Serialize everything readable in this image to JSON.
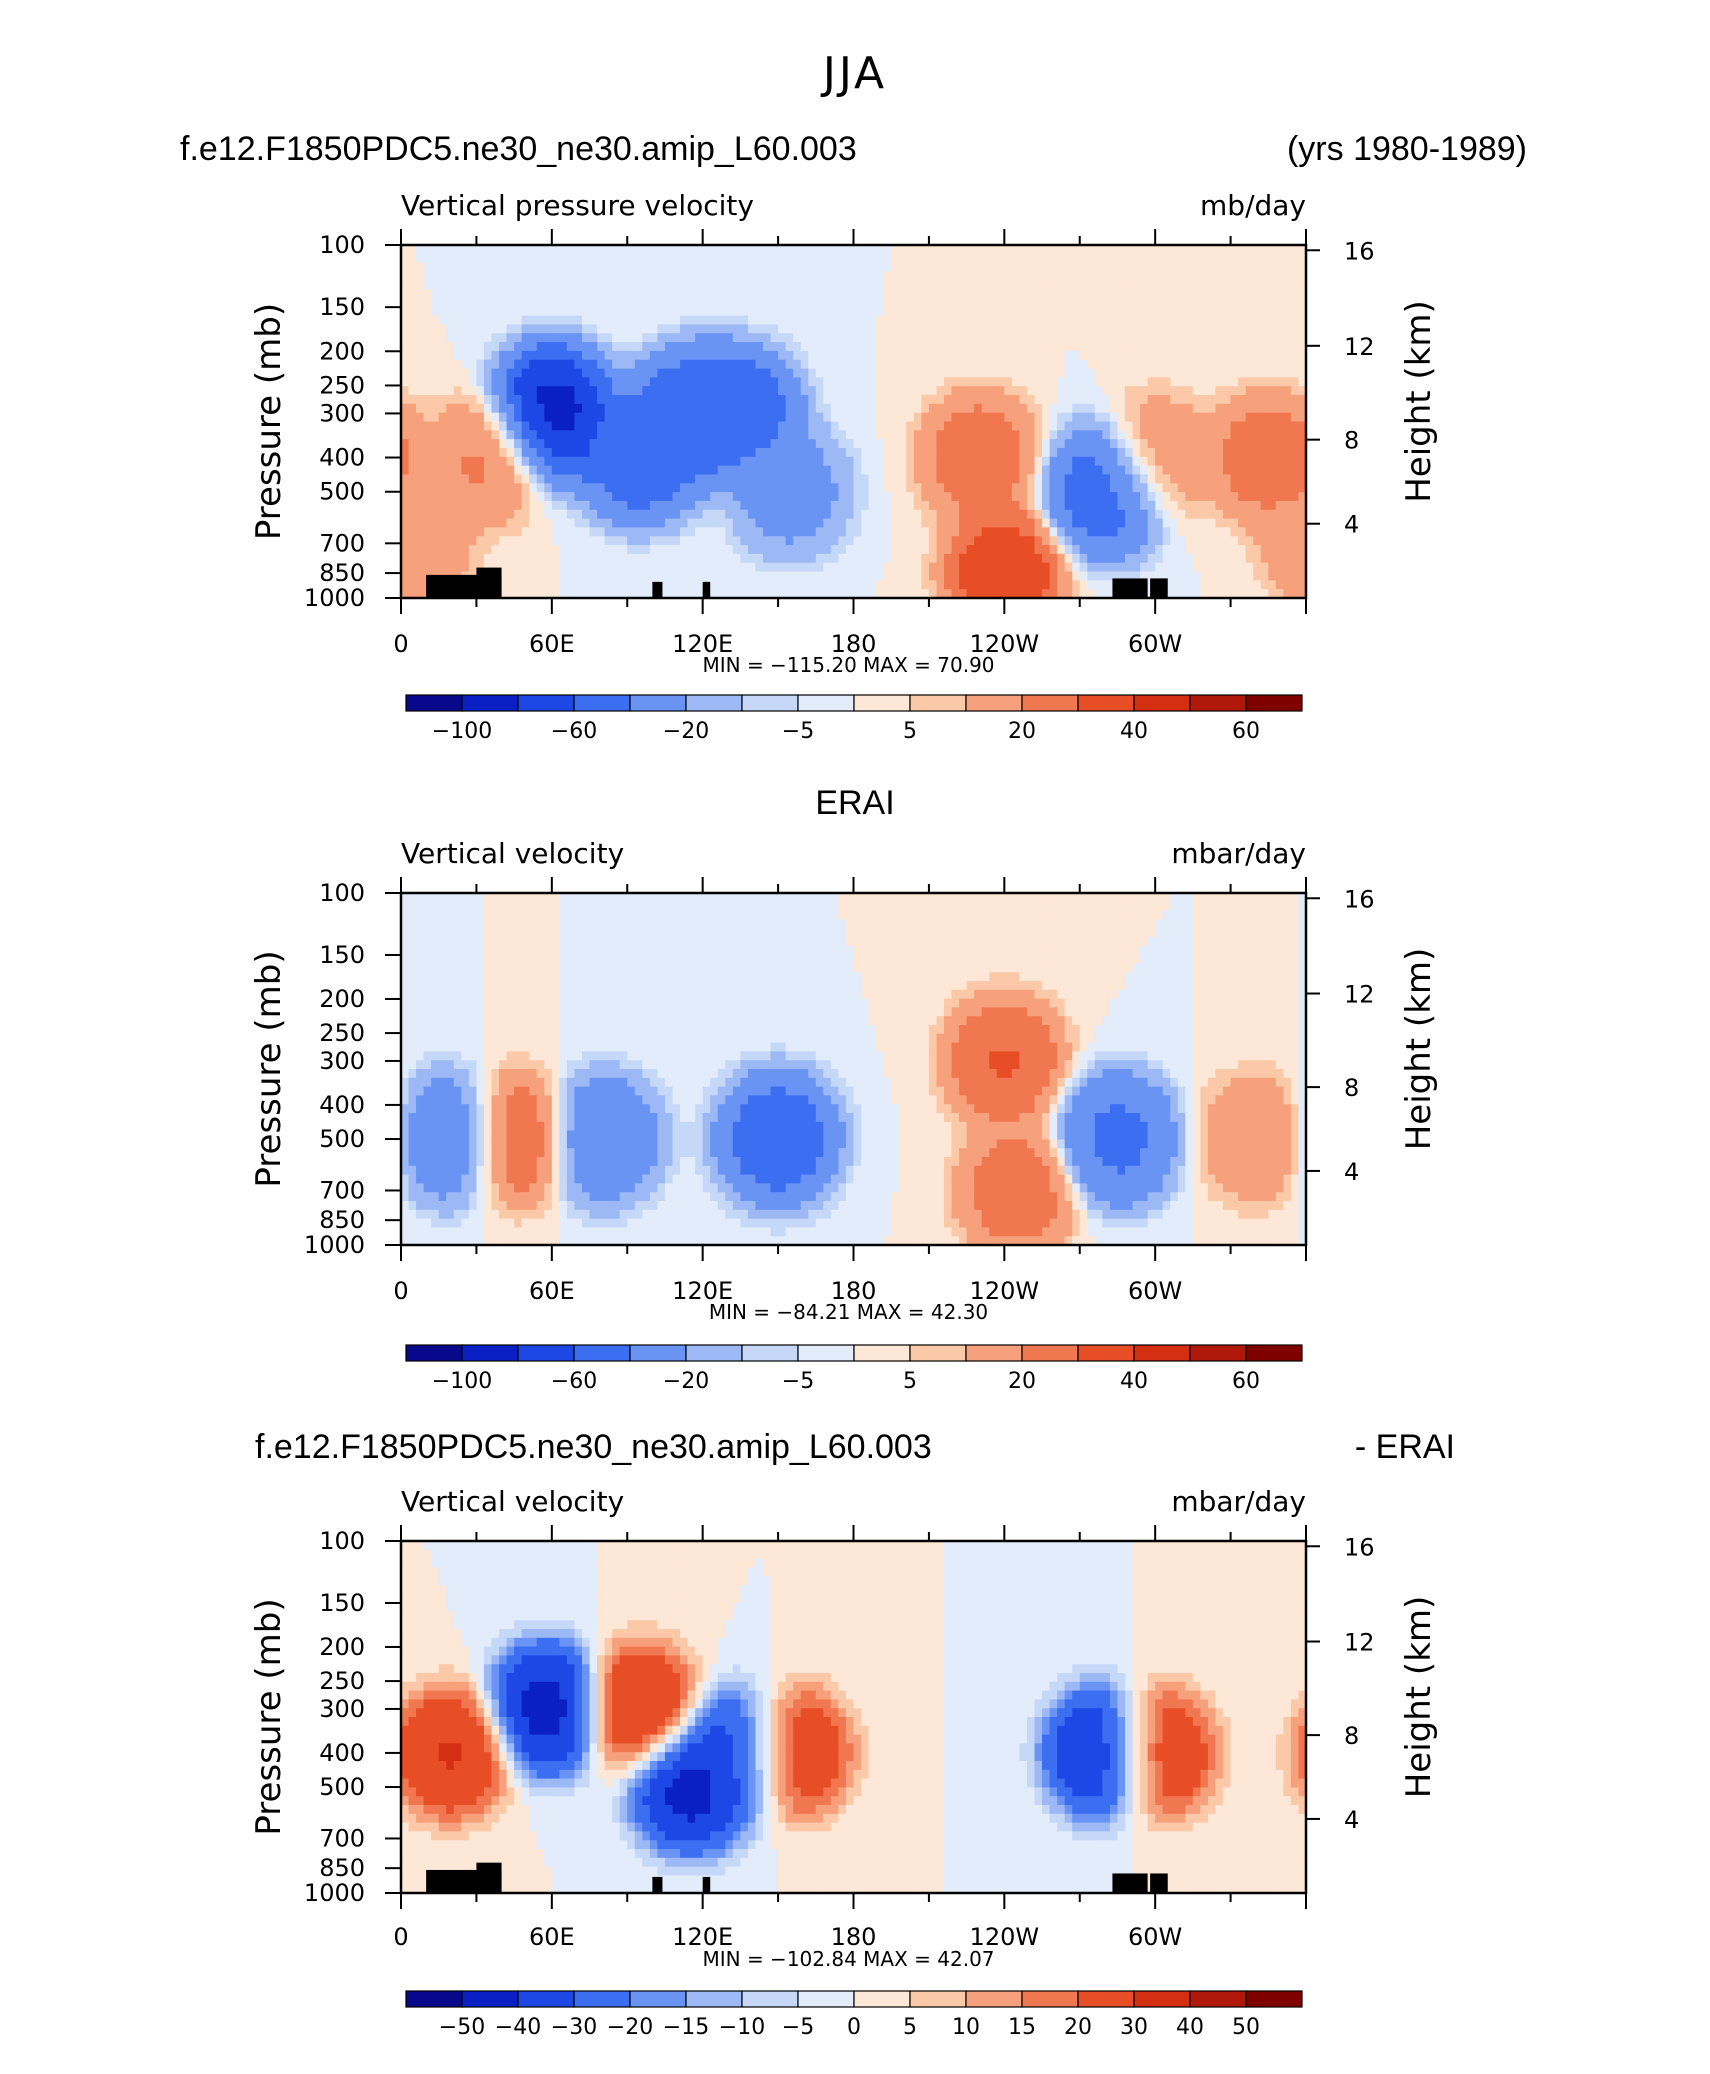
{
  "main_title": "JJA",
  "panel1_header": {
    "left": "f.e12.F1850PDC5.ne30_ne30.amip_L60.003",
    "right": "(yrs 1980-1989)"
  },
  "panel2_header": {
    "center": "ERAI"
  },
  "panel3_header": {
    "left": "f.e12.F1850PDC5.ne30_ne30.amip_L60.003",
    "right": "- ERAI"
  },
  "colors": {
    "levels_main": [
      "#08088c",
      "#0b20c4",
      "#1e48e6",
      "#3c6ef2",
      "#6a94f4",
      "#9cb8f5",
      "#c6d8f7",
      "#e2ecfb",
      "#fde7d6",
      "#fbc9a8",
      "#f6a17c",
      "#f07750",
      "#e84e26",
      "#d42f10",
      "#b0180a",
      "#800000"
    ],
    "levels_diff": [
      "#08088c",
      "#0b20c4",
      "#1e48e6",
      "#3c6ef2",
      "#6a94f4",
      "#9cb8f5",
      "#c6d8f7",
      "#e2ecfb",
      "#fde7d6",
      "#fbc9a8",
      "#f6a17c",
      "#f07750",
      "#e84e26",
      "#d42f10",
      "#b0180a",
      "#800000"
    ]
  },
  "chart_data": [
    {
      "type": "heatmap",
      "title": "Vertical pressure velocity",
      "units": "mb/day",
      "ylabel_left": "Pressure (mb)",
      "ylabel_right": "Height (km)",
      "x_ticks": [
        "0",
        "60E",
        "120E",
        "180",
        "120W",
        "60W"
      ],
      "y_ticks_pressure": [
        "100",
        "150",
        "200",
        "250",
        "300",
        "400",
        "500",
        "700",
        "850",
        "1000"
      ],
      "y_ticks_height": [
        "16",
        "12",
        "8",
        "4"
      ],
      "stats": "MIN = −115.20   MAX =   70.90",
      "colorbar_labels": [
        "−100",
        "−60",
        "−20",
        "−5",
        "5",
        "20",
        "40",
        "60"
      ],
      "min": -115.2,
      "max": 70.9,
      "cells": [
        {
          "lon": 5,
          "lev": 700,
          "v": 20
        },
        {
          "lon": 35,
          "lev": 400,
          "v": 25
        },
        {
          "lon": 60,
          "lev": 300,
          "v": -100
        },
        {
          "lon": 95,
          "lev": 400,
          "v": -60
        },
        {
          "lon": 115,
          "lev": 300,
          "v": -60
        },
        {
          "lon": 135,
          "lev": 300,
          "v": -60
        },
        {
          "lon": 155,
          "lev": 500,
          "v": -30
        },
        {
          "lon": 230,
          "lev": 400,
          "v": 30
        },
        {
          "lon": 240,
          "lev": 850,
          "v": 45
        },
        {
          "lon": 280,
          "lev": 500,
          "v": -60
        },
        {
          "lon": 300,
          "lev": 400,
          "v": 20
        },
        {
          "lon": 345,
          "lev": 400,
          "v": 30
        }
      ]
    },
    {
      "type": "heatmap",
      "title": "Vertical velocity",
      "units": "mbar/day",
      "ylabel_left": "Pressure (mb)",
      "ylabel_right": "Height (km)",
      "x_ticks": [
        "0",
        "60E",
        "120E",
        "180",
        "120W",
        "60W"
      ],
      "y_ticks_pressure": [
        "100",
        "150",
        "200",
        "250",
        "300",
        "400",
        "500",
        "700",
        "850",
        "1000"
      ],
      "y_ticks_height": [
        "16",
        "12",
        "8",
        "4"
      ],
      "stats": "MIN = −84.21   MAX =   42.30",
      "colorbar_labels": [
        "−100",
        "−60",
        "−20",
        "−5",
        "5",
        "20",
        "40",
        "60"
      ],
      "min": -84.21,
      "max": 42.3,
      "cells": [
        {
          "lon": 20,
          "lev": 500,
          "v": -40
        },
        {
          "lon": 45,
          "lev": 500,
          "v": 35
        },
        {
          "lon": 80,
          "lev": 500,
          "v": -40
        },
        {
          "lon": 150,
          "lev": 500,
          "v": -60
        },
        {
          "lon": 240,
          "lev": 300,
          "v": 35
        },
        {
          "lon": 245,
          "lev": 700,
          "v": 30
        },
        {
          "lon": 285,
          "lev": 500,
          "v": -50
        },
        {
          "lon": 340,
          "lev": 500,
          "v": 20
        }
      ]
    },
    {
      "type": "heatmap",
      "title": "Vertical velocity",
      "units": "mbar/day",
      "ylabel_left": "Pressure (mb)",
      "ylabel_right": "Height (km)",
      "x_ticks": [
        "0",
        "60E",
        "120E",
        "180",
        "120W",
        "60W"
      ],
      "y_ticks_pressure": [
        "100",
        "150",
        "200",
        "250",
        "300",
        "400",
        "500",
        "700",
        "850",
        "1000"
      ],
      "y_ticks_height": [
        "16",
        "12",
        "8",
        "4"
      ],
      "stats": "MIN = −102.84   MAX =   42.07",
      "colorbar_labels": [
        "−50",
        "−40",
        "−30",
        "−20",
        "−15",
        "−10",
        "−5",
        "0",
        "5",
        "10",
        "15",
        "20",
        "30",
        "40",
        "50"
      ],
      "min": -102.84,
      "max": 42.07,
      "cells": [
        {
          "lon": 20,
          "lev": 400,
          "v": 35
        },
        {
          "lon": 58,
          "lev": 300,
          "v": -50
        },
        {
          "lon": 95,
          "lev": 300,
          "v": 35
        },
        {
          "lon": 115,
          "lev": 500,
          "v": -50
        },
        {
          "lon": 135,
          "lev": 400,
          "v": -40
        },
        {
          "lon": 155,
          "lev": 400,
          "v": 35
        },
        {
          "lon": 280,
          "lev": 400,
          "v": -50
        },
        {
          "lon": 300,
          "lev": 400,
          "v": 35
        }
      ]
    }
  ]
}
